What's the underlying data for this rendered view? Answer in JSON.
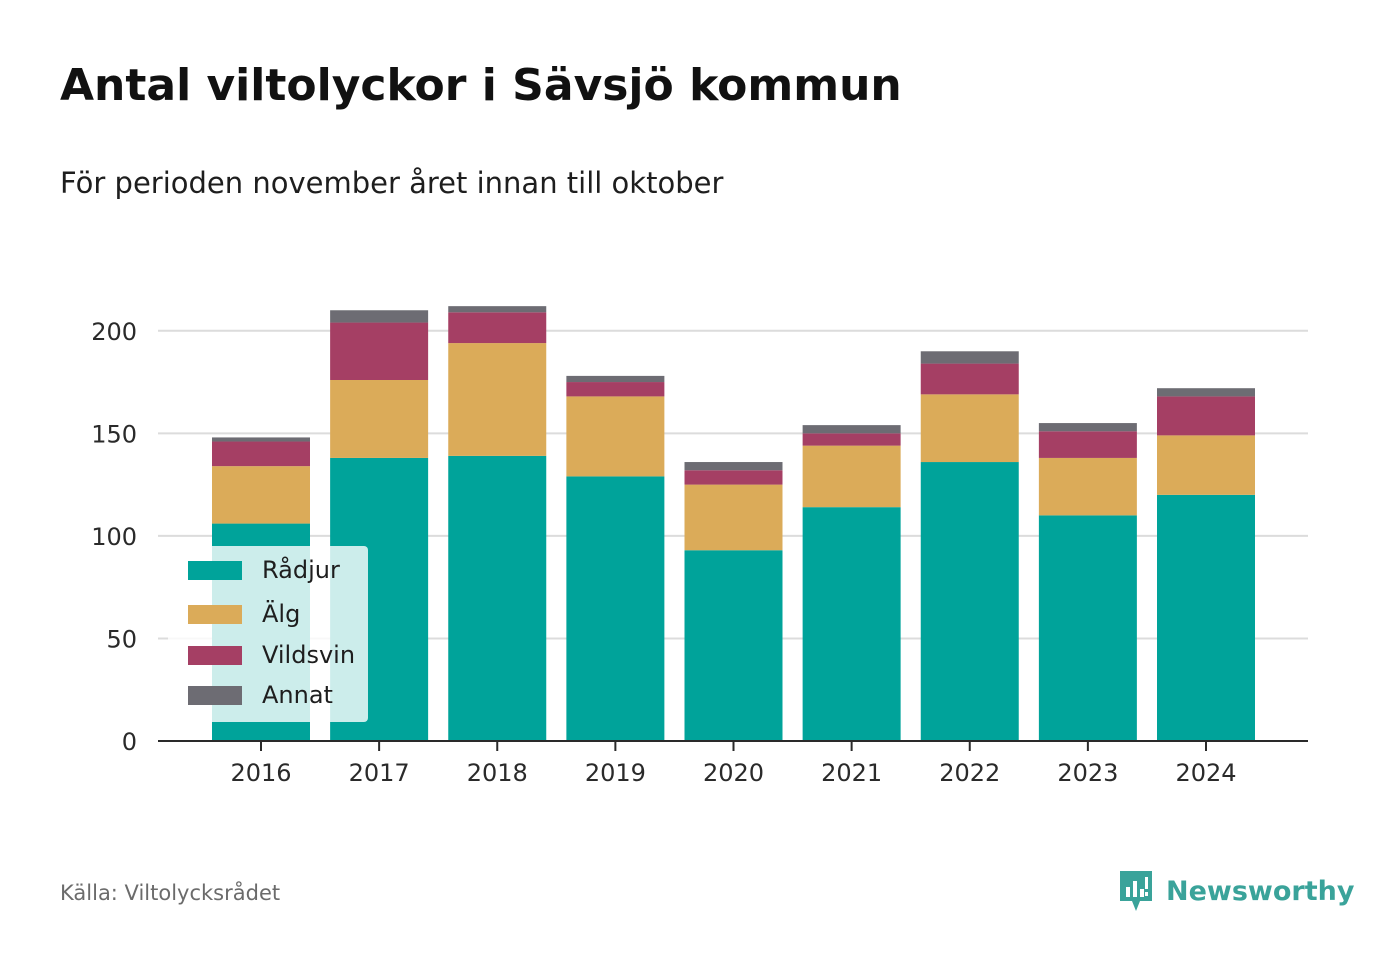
{
  "header": {
    "title": "Antal viltolyckor i Sävsjö kommun",
    "subtitle": "För perioden november året innan till oktober"
  },
  "footer": {
    "source": "Källa: Viltolycksrådet",
    "brand": "Newsworthy",
    "brand_color": "#3aa39a",
    "brand_icon": "bar-chart-speech-bubble-icon"
  },
  "chart_data": {
    "type": "bar",
    "stacked": true,
    "categories": [
      "2016",
      "2017",
      "2018",
      "2019",
      "2020",
      "2021",
      "2022",
      "2023",
      "2024"
    ],
    "series": [
      {
        "name": "Rådjur",
        "color": "#00a39a",
        "values": [
          106,
          138,
          139,
          129,
          93,
          114,
          136,
          110,
          120
        ]
      },
      {
        "name": "Älg",
        "color": "#dbab59",
        "values": [
          28,
          38,
          55,
          39,
          32,
          30,
          33,
          28,
          29
        ]
      },
      {
        "name": "Vildsvin",
        "color": "#a53f64",
        "values": [
          12,
          28,
          15,
          7,
          7,
          6,
          15,
          13,
          19
        ]
      },
      {
        "name": "Annat",
        "color": "#6d6c73",
        "values": [
          2,
          6,
          3,
          3,
          4,
          4,
          6,
          4,
          4
        ]
      }
    ],
    "yticks": [
      0,
      50,
      100,
      150,
      200
    ],
    "ylim": [
      0,
      215
    ],
    "grid": true,
    "legend_position": "bottom-left"
  }
}
